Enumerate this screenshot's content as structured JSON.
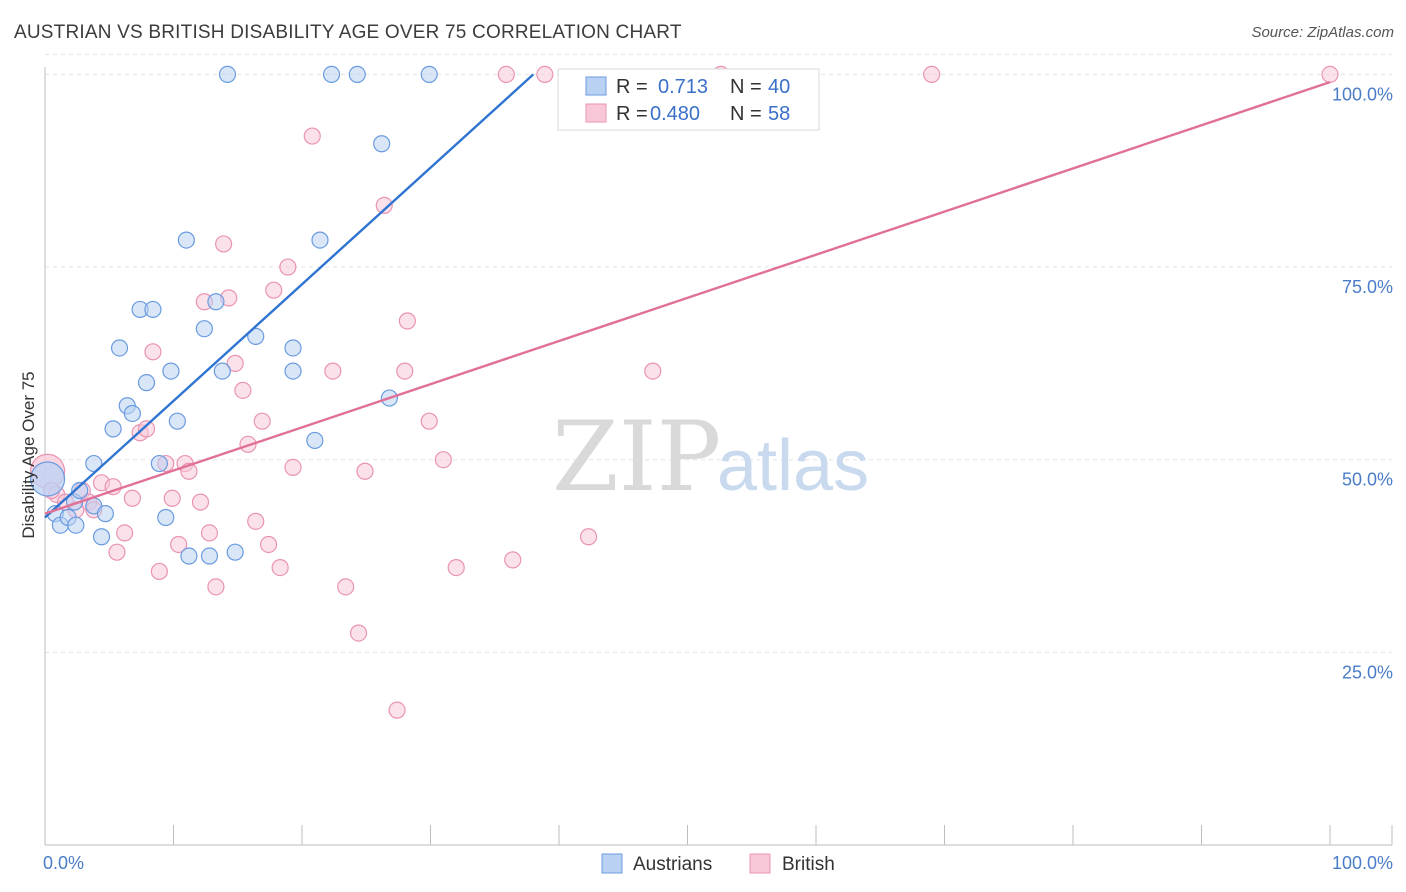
{
  "title": "AUSTRIAN VS BRITISH DISABILITY AGE OVER 75 CORRELATION CHART",
  "source": "Source: ZipAtlas.com",
  "watermark": {
    "zip": "ZIP",
    "atlas": "atlas"
  },
  "colors": {
    "austrians_fill": "#b9d2f3",
    "austrians_stroke": "#6a9be0",
    "austrians_line": "#2f74d0",
    "british_fill": "#f8c8d8",
    "british_stroke": "#ea93b2",
    "british_line": "#e07098",
    "grid": "#e3e3e3",
    "axis_label": "#4a7cc7"
  },
  "legend": {
    "rows": [
      {
        "r_label": "R =",
        "r_value": "0.713",
        "n_label": "N =",
        "n_value": "40"
      },
      {
        "r_label": "R =",
        "r_value": "0.480",
        "n_label": "N =",
        "n_value": "58"
      }
    ]
  },
  "chart_data": {
    "type": "scatter",
    "title": "AUSTRIAN VS BRITISH DISABILITY AGE OVER 75 CORRELATION CHART",
    "xlabel": "",
    "ylabel": "Disability Age Over 75",
    "xlim": [
      0,
      100
    ],
    "ylim": [
      0,
      102
    ],
    "x_tick_labels": [
      "0.0%",
      "100.0%"
    ],
    "y_ticks": [
      25,
      50,
      75,
      100
    ],
    "y_tick_labels": [
      "25.0%",
      "50.0%",
      "75.0%",
      "100.0%"
    ],
    "grid": true,
    "legend_position": "bottom-center",
    "series": [
      {
        "name": "Austrians",
        "r": 0.713,
        "n": 40,
        "trend": {
          "x0": 0,
          "y0": 42.5,
          "x1": 38,
          "y1": 100
        },
        "points": [
          [
            0.2,
            47.5
          ],
          [
            0.8,
            43
          ],
          [
            1.2,
            41.5
          ],
          [
            1.8,
            42.5
          ],
          [
            2.3,
            44.5
          ],
          [
            2.4,
            41.5
          ],
          [
            2.7,
            46
          ],
          [
            3.8,
            44
          ],
          [
            3.8,
            49.5
          ],
          [
            4.4,
            40
          ],
          [
            4.7,
            43
          ],
          [
            5.3,
            54
          ],
          [
            5.8,
            64.5
          ],
          [
            6.4,
            57
          ],
          [
            6.8,
            56
          ],
          [
            7.4,
            69.5
          ],
          [
            7.9,
            60
          ],
          [
            8.4,
            69.5
          ],
          [
            8.9,
            49.5
          ],
          [
            9.4,
            42.5
          ],
          [
            9.8,
            61.5
          ],
          [
            10.3,
            55
          ],
          [
            11.0,
            78.5
          ],
          [
            11.2,
            37.5
          ],
          [
            12.4,
            67
          ],
          [
            12.8,
            37.5
          ],
          [
            13.3,
            70.5
          ],
          [
            13.8,
            61.5
          ],
          [
            14.2,
            100
          ],
          [
            14.8,
            38
          ],
          [
            16.4,
            66
          ],
          [
            19.3,
            61.5
          ],
          [
            19.3,
            64.5
          ],
          [
            21.0,
            52.5
          ],
          [
            21.4,
            78.5
          ],
          [
            22.3,
            100
          ],
          [
            24.3,
            100
          ],
          [
            26.2,
            91
          ],
          [
            26.8,
            58
          ],
          [
            29.9,
            100
          ]
        ]
      },
      {
        "name": "British",
        "r": 0.48,
        "n": 58,
        "trend": {
          "x0": 0,
          "y0": 43,
          "x1": 100,
          "y1": 99
        },
        "points": [
          [
            0.2,
            48.5
          ],
          [
            0.9,
            45.5
          ],
          [
            1.6,
            44.5
          ],
          [
            2.4,
            43.5
          ],
          [
            2.9,
            46
          ],
          [
            3.4,
            44.5
          ],
          [
            3.8,
            43.5
          ],
          [
            4.4,
            47
          ],
          [
            5.3,
            46.5
          ],
          [
            5.6,
            38
          ],
          [
            6.2,
            40.5
          ],
          [
            6.8,
            45
          ],
          [
            7.4,
            53.5
          ],
          [
            7.9,
            54
          ],
          [
            8.4,
            64
          ],
          [
            8.9,
            35.5
          ],
          [
            9.4,
            49.5
          ],
          [
            9.9,
            45
          ],
          [
            10.4,
            39
          ],
          [
            10.9,
            49.5
          ],
          [
            11.2,
            48.5
          ],
          [
            12.1,
            44.5
          ],
          [
            12.4,
            70.5
          ],
          [
            12.8,
            40.5
          ],
          [
            13.3,
            33.5
          ],
          [
            13.9,
            78
          ],
          [
            14.3,
            71
          ],
          [
            14.8,
            62.5
          ],
          [
            15.4,
            59
          ],
          [
            15.8,
            52
          ],
          [
            16.4,
            42
          ],
          [
            16.9,
            55
          ],
          [
            17.4,
            39
          ],
          [
            17.8,
            72
          ],
          [
            18.3,
            36
          ],
          [
            18.9,
            75
          ],
          [
            19.3,
            49
          ],
          [
            20.8,
            92
          ],
          [
            22.4,
            61.5
          ],
          [
            23.4,
            33.5
          ],
          [
            24.4,
            27.5
          ],
          [
            24.9,
            48.5
          ],
          [
            26.4,
            83
          ],
          [
            27.4,
            17.5
          ],
          [
            28.0,
            61.5
          ],
          [
            28.2,
            68
          ],
          [
            29.9,
            55
          ],
          [
            31.0,
            50
          ],
          [
            32.0,
            36
          ],
          [
            35.9,
            100
          ],
          [
            36.4,
            37
          ],
          [
            38.9,
            100
          ],
          [
            42.3,
            40
          ],
          [
            47.3,
            61.5
          ],
          [
            52.6,
            100
          ],
          [
            69.0,
            100
          ],
          [
            0.5,
            46
          ],
          [
            100.0,
            100
          ]
        ]
      }
    ]
  }
}
